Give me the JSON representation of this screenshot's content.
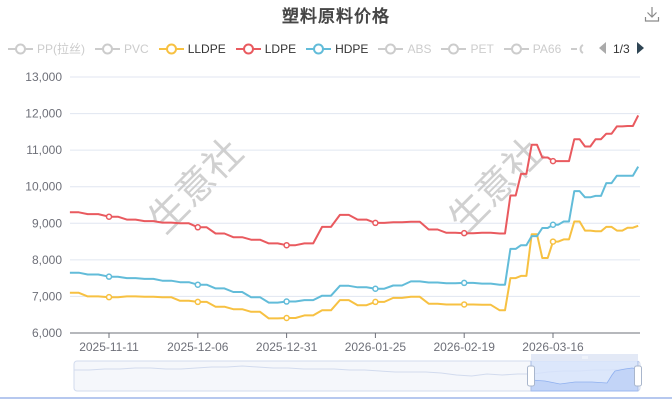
{
  "title": "塑料原料价格",
  "toolbar": {
    "download_icon": "download-icon"
  },
  "legend": {
    "items": [
      {
        "name": "PP(拉丝)",
        "color": "#cccccc",
        "active": false
      },
      {
        "name": "PVC",
        "color": "#cccccc",
        "active": false
      },
      {
        "name": "LLDPE",
        "color": "#f7c142",
        "active": true
      },
      {
        "name": "LDPE",
        "color": "#e95a5f",
        "active": true
      },
      {
        "name": "HDPE",
        "color": "#62bcd9",
        "active": true
      },
      {
        "name": "ABS",
        "color": "#cccccc",
        "active": false
      },
      {
        "name": "PET",
        "color": "#cccccc",
        "active": false
      },
      {
        "name": "PA66",
        "color": "#cccccc",
        "active": false
      }
    ],
    "truncated_item": "C",
    "page": "1/3",
    "prev_icon": "triangle-left-icon",
    "next_icon": "triangle-right-icon"
  },
  "watermark": "生意社",
  "chart_data": {
    "type": "line",
    "title": "塑料原料价格",
    "xlabel": "",
    "ylabel": "",
    "ylim": [
      6000,
      13000
    ],
    "yticks": [
      "6,000",
      "7,000",
      "8,000",
      "9,000",
      "10,000",
      "11,000",
      "12,000",
      "13,000"
    ],
    "xticks": [
      "2025-11-11",
      "2025-12-06",
      "2025-12-31",
      "2026-01-25",
      "2026-02-19",
      "2026-03-16"
    ],
    "grid": true,
    "legend_position": "top",
    "x": [
      "2025-10-31",
      "2025-11-05",
      "2025-11-11",
      "2025-11-16",
      "2025-11-21",
      "2025-11-26",
      "2025-12-01",
      "2025-12-06",
      "2025-12-11",
      "2025-12-16",
      "2025-12-21",
      "2025-12-26",
      "2025-12-31",
      "2026-01-05",
      "2026-01-10",
      "2026-01-15",
      "2026-01-20",
      "2026-01-25",
      "2026-01-30",
      "2026-02-04",
      "2026-02-09",
      "2026-02-14",
      "2026-02-19",
      "2026-02-24",
      "2026-03-01",
      "2026-03-04",
      "2026-03-07",
      "2026-03-10",
      "2026-03-13",
      "2026-03-16",
      "2026-03-19",
      "2026-03-22",
      "2026-03-25",
      "2026-03-28",
      "2026-03-31",
      "2026-04-03",
      "2026-04-06",
      "2026-04-09"
    ],
    "series": [
      {
        "name": "LLDPE",
        "color": "#f7c142",
        "values": [
          7100,
          7000,
          6980,
          7000,
          6990,
          6980,
          6880,
          6850,
          6720,
          6650,
          6580,
          6400,
          6410,
          6480,
          6620,
          6900,
          6760,
          6850,
          6960,
          6990,
          6800,
          6780,
          6780,
          6770,
          6620,
          7500,
          7560,
          8700,
          8050,
          8500,
          8560,
          9050,
          8800,
          8780,
          8900,
          8800,
          8880,
          8930
        ]
      },
      {
        "name": "LDPE",
        "color": "#e95a5f",
        "values": [
          9300,
          9250,
          9180,
          9100,
          9060,
          9020,
          9000,
          8890,
          8720,
          8620,
          8550,
          8450,
          8400,
          8450,
          8900,
          9230,
          9100,
          9010,
          9030,
          9040,
          8830,
          8740,
          8730,
          8740,
          8720,
          9760,
          10350,
          11150,
          10800,
          10700,
          10700,
          11300,
          11100,
          11300,
          11450,
          11650,
          11660,
          11950
        ]
      },
      {
        "name": "HDPE",
        "color": "#62bcd9",
        "values": [
          7650,
          7600,
          7540,
          7500,
          7480,
          7430,
          7390,
          7320,
          7220,
          7120,
          6980,
          6830,
          6860,
          6900,
          7020,
          7290,
          7250,
          7210,
          7300,
          7410,
          7380,
          7360,
          7370,
          7350,
          7320,
          8300,
          8400,
          8650,
          8870,
          8960,
          9050,
          9880,
          9710,
          9750,
          10100,
          10300,
          10300,
          10550
        ]
      }
    ],
    "markers": [
      {
        "x": "2025-11-11",
        "series": "all"
      },
      {
        "x": "2025-12-06",
        "series": "all"
      },
      {
        "x": "2025-12-31",
        "series": "all"
      },
      {
        "x": "2026-01-25",
        "series": "all"
      },
      {
        "x": "2026-02-19",
        "series": "all"
      },
      {
        "x": "2026-03-16",
        "series": "all"
      }
    ],
    "data_zoom": {
      "start_percent": 82,
      "end_percent": 100
    }
  }
}
